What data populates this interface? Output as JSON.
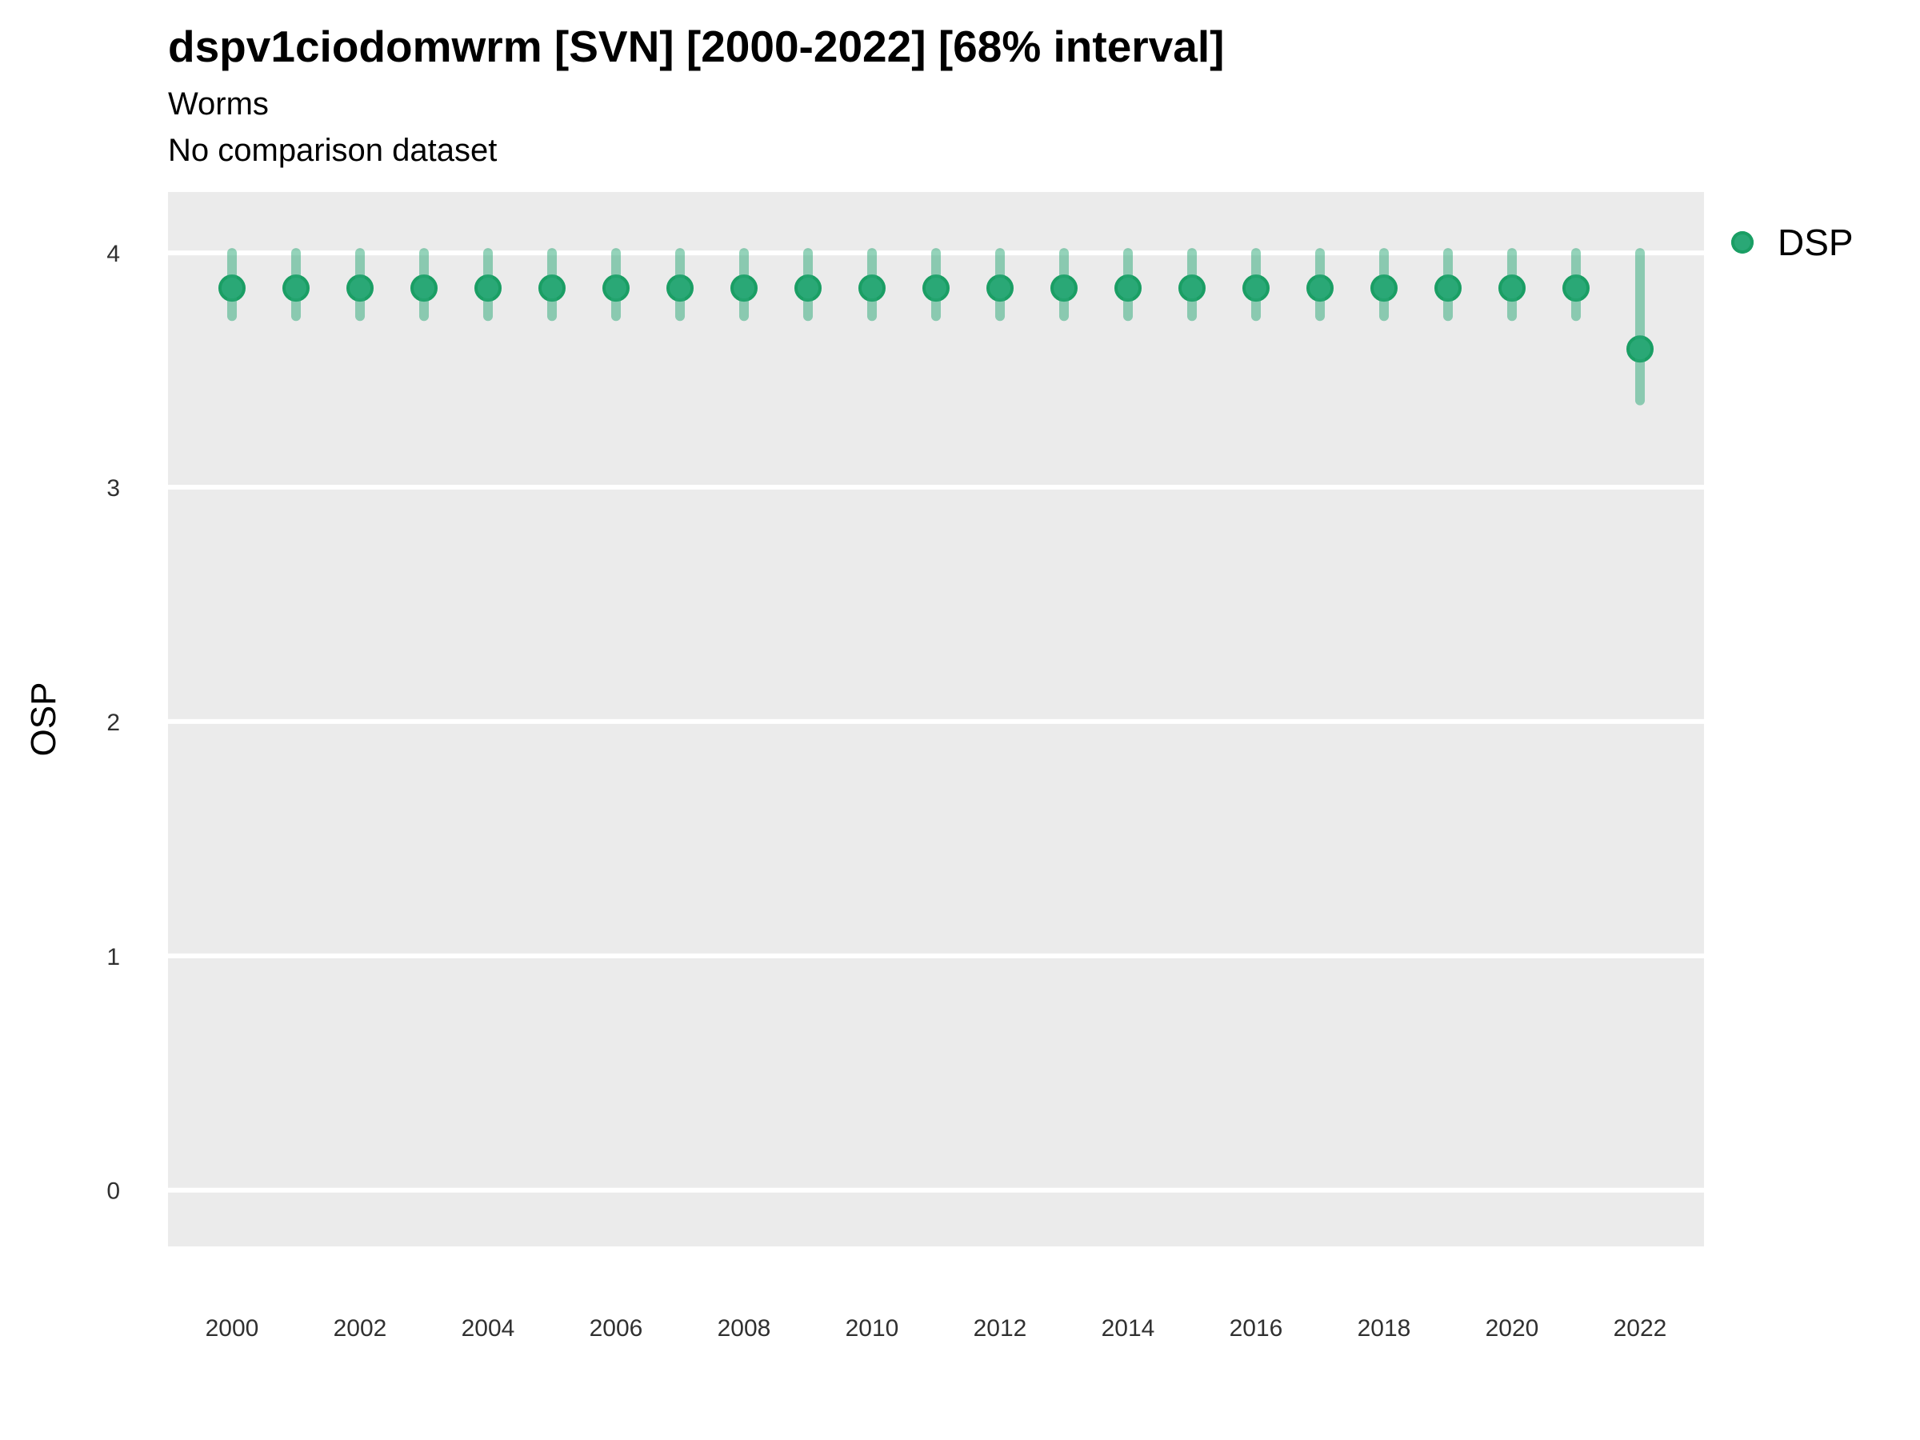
{
  "header": {
    "title": "dspv1ciodomwrm [SVN] [2000-2022] [68% interval]",
    "subtitle": "Worms",
    "comparison_note": "No comparison dataset"
  },
  "legend": {
    "position": "right-top",
    "items": [
      {
        "label": "DSP",
        "color": "#2AA876",
        "marker": "circle"
      }
    ]
  },
  "chart_data": {
    "type": "scatter",
    "title": "dspv1ciodomwrm [SVN] [2000-2022] [68% interval]",
    "subtitle": "Worms",
    "note": "No comparison dataset",
    "xlabel": "",
    "ylabel": "OSP",
    "xlim": [
      1999,
      2023
    ],
    "ylim": [
      -0.24,
      4.26
    ],
    "x_ticks": [
      2000,
      2002,
      2004,
      2006,
      2008,
      2010,
      2012,
      2014,
      2016,
      2018,
      2020,
      2022
    ],
    "y_ticks": [
      0,
      1,
      2,
      3,
      4
    ],
    "grid": "major-horizontal",
    "panel_bg": "#EBEBEB",
    "grid_color": "#FFFFFF",
    "tick_color": "#303030",
    "interval_label": "68% interval",
    "series": [
      {
        "name": "DSP",
        "color": "#2AA876",
        "stroke_color": "#1A9E64",
        "interval_color": "#2AA876",
        "interval_opacity": 0.5,
        "points": [
          {
            "x": 2000,
            "y": 3.85,
            "lo": 3.73,
            "hi": 4.0
          },
          {
            "x": 2001,
            "y": 3.85,
            "lo": 3.73,
            "hi": 4.0
          },
          {
            "x": 2002,
            "y": 3.85,
            "lo": 3.73,
            "hi": 4.0
          },
          {
            "x": 2003,
            "y": 3.85,
            "lo": 3.73,
            "hi": 4.0
          },
          {
            "x": 2004,
            "y": 3.85,
            "lo": 3.73,
            "hi": 4.0
          },
          {
            "x": 2005,
            "y": 3.85,
            "lo": 3.73,
            "hi": 4.0
          },
          {
            "x": 2006,
            "y": 3.85,
            "lo": 3.73,
            "hi": 4.0
          },
          {
            "x": 2007,
            "y": 3.85,
            "lo": 3.73,
            "hi": 4.0
          },
          {
            "x": 2008,
            "y": 3.85,
            "lo": 3.73,
            "hi": 4.0
          },
          {
            "x": 2009,
            "y": 3.85,
            "lo": 3.73,
            "hi": 4.0
          },
          {
            "x": 2010,
            "y": 3.85,
            "lo": 3.73,
            "hi": 4.0
          },
          {
            "x": 2011,
            "y": 3.85,
            "lo": 3.73,
            "hi": 4.0
          },
          {
            "x": 2012,
            "y": 3.85,
            "lo": 3.73,
            "hi": 4.0
          },
          {
            "x": 2013,
            "y": 3.85,
            "lo": 3.73,
            "hi": 4.0
          },
          {
            "x": 2014,
            "y": 3.85,
            "lo": 3.73,
            "hi": 4.0
          },
          {
            "x": 2015,
            "y": 3.85,
            "lo": 3.73,
            "hi": 4.0
          },
          {
            "x": 2016,
            "y": 3.85,
            "lo": 3.73,
            "hi": 4.0
          },
          {
            "x": 2017,
            "y": 3.85,
            "lo": 3.73,
            "hi": 4.0
          },
          {
            "x": 2018,
            "y": 3.85,
            "lo": 3.73,
            "hi": 4.0
          },
          {
            "x": 2019,
            "y": 3.85,
            "lo": 3.73,
            "hi": 4.0
          },
          {
            "x": 2020,
            "y": 3.85,
            "lo": 3.73,
            "hi": 4.0
          },
          {
            "x": 2021,
            "y": 3.85,
            "lo": 3.73,
            "hi": 4.0
          },
          {
            "x": 2022,
            "y": 3.59,
            "lo": 3.37,
            "hi": 4.0
          }
        ]
      }
    ]
  }
}
